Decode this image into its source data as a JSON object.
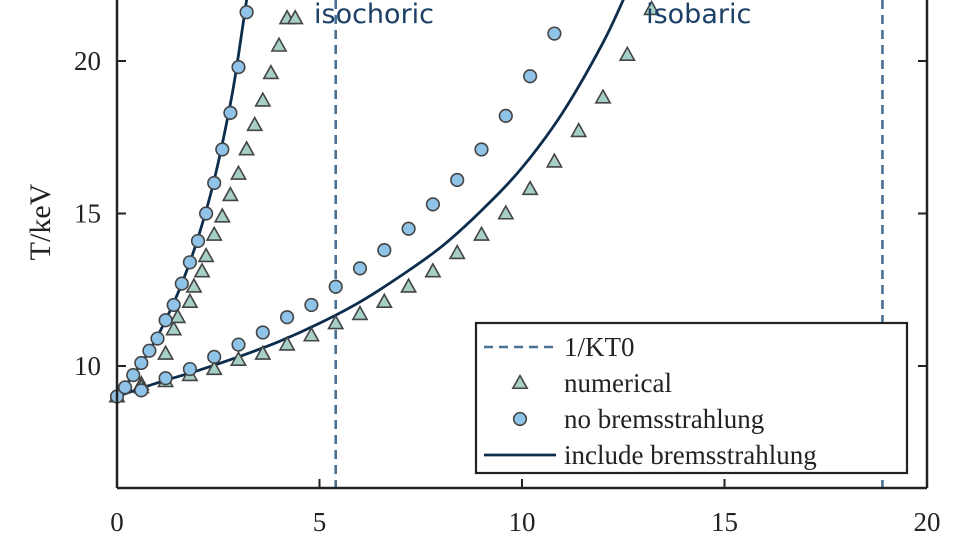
{
  "chart_data": {
    "type": "scatter",
    "title": "",
    "xlabel": "",
    "ylabel": "T/keV",
    "xlim": [
      0,
      20
    ],
    "ylim": [
      6,
      22
    ],
    "x_ticks": [
      0,
      5,
      10,
      15,
      20
    ],
    "y_ticks": [
      10,
      15,
      20
    ],
    "grid": false,
    "legend_position": "bottom-right",
    "annotations": [
      {
        "text": "isochoric",
        "x": 6,
        "y": 21.6
      },
      {
        "text": "isobaric",
        "x": 14.2,
        "y": 21.6
      }
    ],
    "colors": {
      "dashed": "#4a7194",
      "curve": "#0d2d4d",
      "triangle_fill": "#a6cfc8",
      "circle_fill": "#8fc3e8",
      "marker_edge": "#444444"
    },
    "series": [
      {
        "name": "1/KT0",
        "style": "dashed-vertical",
        "x": [
          5.4,
          18.9
        ]
      },
      {
        "name": "numerical",
        "style": "triangle",
        "groups": [
          {
            "x": [
              0.0,
              0.6,
              1.2,
              1.4,
              1.5,
              1.8,
              1.9,
              2.1,
              2.2,
              2.4,
              2.6,
              2.8,
              3.0,
              3.2,
              3.4,
              3.6,
              3.8,
              4.0,
              4.2,
              4.4
            ],
            "y": [
              9.0,
              9.4,
              10.4,
              11.2,
              11.6,
              12.1,
              12.6,
              13.1,
              13.6,
              14.3,
              14.9,
              15.6,
              16.3,
              17.1,
              17.9,
              18.7,
              19.6,
              20.5,
              21.4,
              21.4
            ]
          },
          {
            "x": [
              0.6,
              1.2,
              1.8,
              2.4,
              3.0,
              3.6,
              4.2,
              4.8,
              5.4,
              6.0,
              6.6,
              7.2,
              7.8,
              8.4,
              9.0,
              9.6,
              10.2,
              10.8,
              11.4,
              12.0,
              12.6,
              13.2
            ],
            "y": [
              9.3,
              9.5,
              9.7,
              9.9,
              10.2,
              10.4,
              10.7,
              11.0,
              11.4,
              11.7,
              12.1,
              12.6,
              13.1,
              13.7,
              14.3,
              15.0,
              15.8,
              16.7,
              17.7,
              18.8,
              20.2,
              21.7
            ]
          }
        ]
      },
      {
        "name": "no bremsstrahlung",
        "style": "circle",
        "groups": [
          {
            "x": [
              0.0,
              0.2,
              0.4,
              0.6,
              0.8,
              1.0,
              1.2,
              1.4,
              1.6,
              1.8,
              2.0,
              2.2,
              2.4,
              2.6,
              2.8,
              3.0,
              3.2
            ],
            "y": [
              9.0,
              9.3,
              9.7,
              10.1,
              10.5,
              10.9,
              11.5,
              12.0,
              12.7,
              13.4,
              14.1,
              15.0,
              16.0,
              17.1,
              18.3,
              19.8,
              21.6
            ]
          },
          {
            "x": [
              0.6,
              1.2,
              1.8,
              2.4,
              3.0,
              3.6,
              4.2,
              4.8,
              5.4,
              6.0,
              6.6,
              7.2,
              7.8,
              8.4,
              9.0,
              9.6,
              10.2,
              10.8
            ],
            "y": [
              9.2,
              9.6,
              9.9,
              10.3,
              10.7,
              11.1,
              11.6,
              12.0,
              12.6,
              13.2,
              13.8,
              14.5,
              15.3,
              16.1,
              17.1,
              18.2,
              19.5,
              20.9
            ]
          }
        ]
      },
      {
        "name": "include bremsstrahlung",
        "style": "solid",
        "groups": [
          {
            "x": [
              0.0,
              0.4,
              0.8,
              1.2,
              1.6,
              2.0,
              2.4,
              2.8,
              3.0,
              3.2,
              3.4
            ],
            "y": [
              9.0,
              9.7,
              10.5,
              11.5,
              12.7,
              14.2,
              16.1,
              18.6,
              20.2,
              22.0,
              24.0
            ]
          },
          {
            "x": [
              0.0,
              1.0,
              2.0,
              3.0,
              4.0,
              5.0,
              6.0,
              7.0,
              8.0,
              9.0,
              10.0,
              11.0,
              12.0,
              12.6
            ],
            "y": [
              9.0,
              9.45,
              9.85,
              10.3,
              10.8,
              11.4,
              12.1,
              12.95,
              13.9,
              15.1,
              16.5,
              18.3,
              20.6,
              22.3
            ]
          }
        ]
      }
    ]
  }
}
